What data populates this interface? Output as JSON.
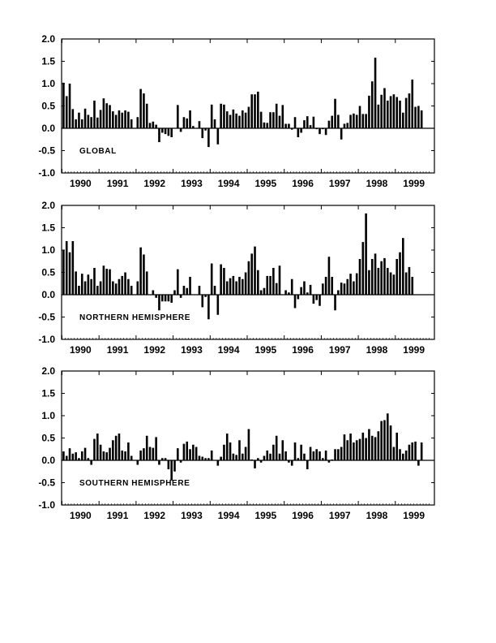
{
  "chart_data": [
    {
      "type": "bar",
      "panel_label": "GLOBAL",
      "ylim": [
        -1.0,
        2.0
      ],
      "yticks": [
        "2.0",
        "1.5",
        "1.0",
        "0.5",
        "0.0",
        "-0.5",
        "-1.0"
      ],
      "xticks": [
        "1990",
        "1991",
        "1992",
        "1993",
        "1994",
        "1995",
        "1996",
        "1997",
        "1998",
        "1999"
      ],
      "x_start": "1990-01",
      "values": [
        1.02,
        0.72,
        1.0,
        0.43,
        0.2,
        0.35,
        0.2,
        0.44,
        0.3,
        0.25,
        0.62,
        0.24,
        0.41,
        0.67,
        0.56,
        0.52,
        0.38,
        0.3,
        0.4,
        0.35,
        0.4,
        0.37,
        0.2,
        0.0,
        0.25,
        0.88,
        0.78,
        0.55,
        0.12,
        0.15,
        0.08,
        -0.31,
        -0.1,
        -0.13,
        -0.17,
        -0.2,
        0.0,
        0.52,
        -0.08,
        0.25,
        0.22,
        0.4,
        0.05,
        0.0,
        0.16,
        -0.22,
        -0.05,
        -0.42,
        0.53,
        0.2,
        -0.36,
        0.55,
        0.53,
        0.38,
        0.3,
        0.42,
        0.33,
        0.28,
        0.4,
        0.35,
        0.48,
        0.76,
        0.76,
        0.82,
        0.37,
        0.13,
        0.12,
        0.36,
        0.36,
        0.55,
        0.28,
        0.52,
        0.1,
        0.1,
        -0.03,
        0.25,
        -0.2,
        -0.1,
        0.18,
        0.27,
        0.07,
        0.26,
        -0.02,
        -0.13,
        -0.02,
        -0.15,
        0.17,
        0.28,
        0.66,
        0.3,
        -0.25,
        0.1,
        0.12,
        0.3,
        0.33,
        0.3,
        0.5,
        0.32,
        0.32,
        0.73,
        1.05,
        1.58,
        0.53,
        0.75,
        0.9,
        0.62,
        0.72,
        0.76,
        0.7,
        0.62,
        0.35,
        0.68,
        0.78,
        1.09,
        0.48,
        0.5,
        0.4
      ]
    },
    {
      "type": "bar",
      "panel_label": "NORTHERN HEMISPHERE",
      "ylim": [
        -1.0,
        2.0
      ],
      "yticks": [
        "2.0",
        "1.5",
        "1.0",
        "0.5",
        "0.0",
        "-0.5",
        "-1.0"
      ],
      "xticks": [
        "1990",
        "1991",
        "1992",
        "1993",
        "1994",
        "1995",
        "1996",
        "1997",
        "1998",
        "1999"
      ],
      "x_start": "1990-01",
      "values": [
        1.0,
        1.2,
        0.95,
        1.2,
        0.52,
        0.2,
        0.47,
        0.3,
        0.45,
        0.35,
        0.6,
        0.2,
        0.3,
        0.65,
        0.58,
        0.57,
        0.3,
        0.25,
        0.35,
        0.42,
        0.5,
        0.35,
        0.2,
        0.0,
        0.3,
        1.06,
        0.9,
        0.52,
        0.0,
        0.1,
        -0.07,
        -0.35,
        -0.15,
        -0.15,
        -0.15,
        -0.18,
        0.1,
        0.57,
        -0.07,
        0.2,
        0.15,
        0.4,
        0.0,
        0.0,
        0.2,
        -0.28,
        -0.05,
        -0.55,
        0.7,
        0.2,
        -0.45,
        0.68,
        0.6,
        0.3,
        0.37,
        0.42,
        0.3,
        0.4,
        0.35,
        0.5,
        0.75,
        0.92,
        1.08,
        0.55,
        0.1,
        0.15,
        0.42,
        0.42,
        0.6,
        0.26,
        0.65,
        0.0,
        0.1,
        0.05,
        0.35,
        -0.3,
        -0.1,
        0.17,
        0.3,
        0.05,
        0.22,
        -0.2,
        -0.12,
        -0.25,
        0.25,
        0.4,
        0.85,
        0.4,
        -0.35,
        0.1,
        0.27,
        0.25,
        0.35,
        0.47,
        0.3,
        0.48,
        0.8,
        1.18,
        1.82,
        0.55,
        0.8,
        0.92,
        0.6,
        0.75,
        0.82,
        0.6,
        0.5,
        0.45,
        0.8,
        0.95,
        1.27,
        0.5,
        0.62,
        0.4
      ]
    },
    {
      "type": "bar",
      "panel_label": "SOUTHERN HEMISPHERE",
      "ylim": [
        -1.0,
        2.0
      ],
      "yticks": [
        "2.0",
        "1.5",
        "1.0",
        "0.5",
        "0.0",
        "-0.5",
        "-1.0"
      ],
      "xticks": [
        "1990",
        "1991",
        "1992",
        "1993",
        "1994",
        "1995",
        "1996",
        "1997",
        "1998",
        "1999"
      ],
      "x_start": "1990-01",
      "values": [
        0.2,
        0.1,
        0.27,
        0.15,
        0.18,
        0.05,
        0.2,
        0.28,
        0.05,
        -0.1,
        0.48,
        0.6,
        0.35,
        0.2,
        0.18,
        0.28,
        0.45,
        0.55,
        0.6,
        0.22,
        0.2,
        0.4,
        0.1,
        0.0,
        -0.1,
        0.22,
        0.27,
        0.55,
        0.3,
        0.28,
        0.52,
        -0.1,
        0.05,
        0.05,
        -0.2,
        -0.45,
        -0.25,
        0.27,
        -0.05,
        0.37,
        0.42,
        0.25,
        0.35,
        0.3,
        0.1,
        0.08,
        0.05,
        0.05,
        0.22,
        0.0,
        -0.12,
        0.08,
        0.35,
        0.6,
        0.4,
        0.15,
        0.12,
        0.45,
        0.15,
        0.3,
        0.7,
        0.02,
        -0.18,
        0.05,
        -0.05,
        0.1,
        0.22,
        0.15,
        0.35,
        0.55,
        0.15,
        0.45,
        0.2,
        -0.05,
        -0.12,
        0.4,
        0.05,
        0.35,
        0.15,
        -0.2,
        0.3,
        0.2,
        0.25,
        0.2,
        0.05,
        0.22,
        -0.05,
        0.02,
        0.25,
        0.25,
        0.3,
        0.58,
        0.45,
        0.6,
        0.4,
        0.45,
        0.48,
        0.62,
        0.5,
        0.7,
        0.55,
        0.52,
        0.65,
        0.88,
        0.9,
        1.05,
        0.78,
        0.3,
        0.62,
        0.25,
        0.15,
        0.22,
        0.35,
        0.4,
        0.42,
        -0.12,
        0.4
      ]
    }
  ]
}
